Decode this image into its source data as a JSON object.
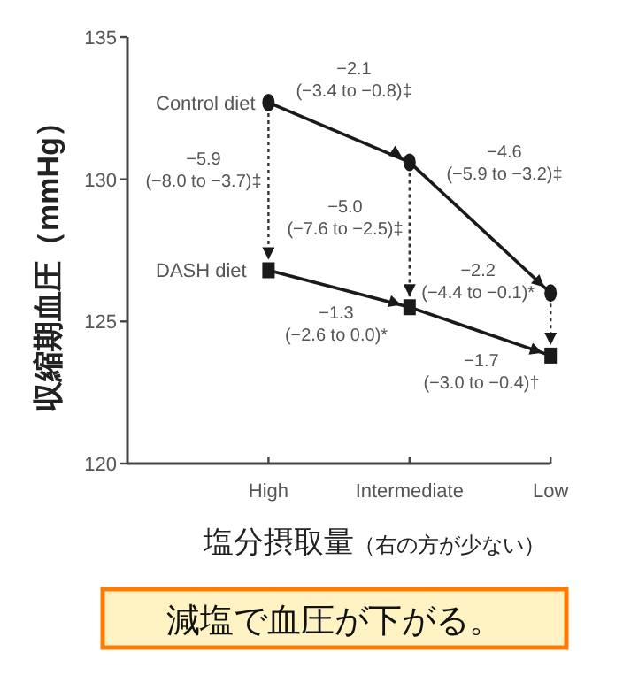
{
  "chart_data": {
    "type": "line",
    "xlabel": "塩分摂取量（右の方が少ない）",
    "ylabel": "収縮期血圧（mmHg）",
    "categories": [
      "High",
      "Intermediate",
      "Low"
    ],
    "series": [
      {
        "name": "Control diet",
        "color": "#1a1a1a",
        "marker": "circle",
        "values": [
          132.7,
          130.6,
          126.0
        ]
      },
      {
        "name": "DASH diet",
        "color": "#1a1a1a",
        "marker": "square",
        "values": [
          126.8,
          125.5,
          123.8
        ]
      }
    ],
    "line_style": "solid",
    "ylim": [
      120,
      135
    ],
    "yticks": [
      120,
      125,
      130,
      135
    ],
    "grid": false,
    "annotations": [
      "−2.1\n(−3.4 to −0.8)‡",
      "−5.9\n(−8.0 to −3.7)‡",
      "−5.0\n(−7.6 to −2.5)‡",
      "−4.6\n(−5.9 to −3.2)‡",
      {
        "text": "−2.2\n(−4.4 to −0.1)*",
        "x": "Low",
        "y": 123.8
      },
      "−1.3\n(−2.6 to 0.0)*",
      "−1.7\n(−3.0 to −0.4)†",
      "減塩で血圧が下がる。"
    ]
  }
}
